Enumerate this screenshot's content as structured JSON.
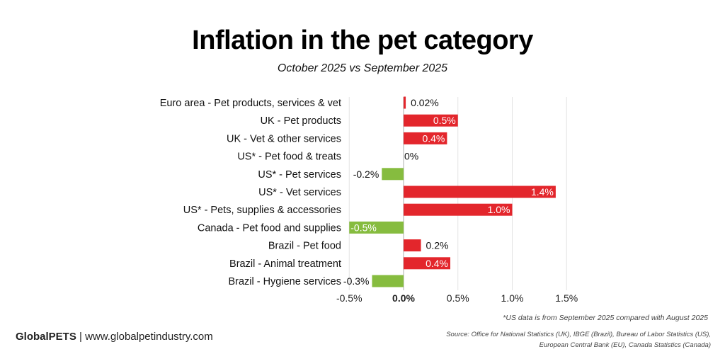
{
  "chart_data": {
    "type": "bar",
    "orientation": "horizontal",
    "title": "Inflation in the pet category",
    "subtitle": "October 2025 vs September 2025",
    "xlabel": "",
    "ylabel": "",
    "xlim": [
      -0.5,
      1.5
    ],
    "x_ticks": [
      -0.5,
      0.0,
      0.5,
      1.0,
      1.5
    ],
    "x_tick_labels": [
      "-0.5%",
      "0.0%",
      "0.5%",
      "1.0%",
      "1.5%"
    ],
    "grid": true,
    "legend": "none",
    "categories": [
      "Euro area - Pet products, services & vet",
      "UK - Pet products",
      "UK - Vet & other services",
      "US* - Pet food & treats",
      "US* - Pet services",
      "US* - Vet services",
      "US* - Pets, supplies & accessories",
      "Canada - Pet food and supplies",
      "Brazil - Pet food",
      "Brazil - Animal treatment",
      "Brazil - Hygiene services"
    ],
    "values": [
      0.02,
      0.5,
      0.4,
      0.0,
      -0.2,
      1.4,
      1.0,
      -0.5,
      0.16,
      0.43,
      -0.29
    ],
    "data_labels": [
      "0.02%",
      "0.5%",
      "0.4%",
      "0%",
      "-0.2%",
      "1.4%",
      "1.0%",
      "-0.5%",
      "0.2%",
      "0.4%",
      "-0.3%"
    ],
    "colors": {
      "positive": "#e3262c",
      "negative": "#86bc3f",
      "grid": "#e3e3e3",
      "axis": "#c8c8c8"
    }
  },
  "header": {
    "title": "Inflation in the pet category",
    "subtitle": "October 2025 vs September 2025"
  },
  "footer": {
    "footnote": "*US data is from September 2025 compared with August 2025",
    "source_line1": "Source: Office for National Statistics (UK), IBGE (Brazil), Bureau of Labor Statistics (US),",
    "source_line2": "European Central Bank (EU), Canada Statistics (Canada)",
    "brand_name": "GlobalPETS",
    "brand_separator": " | ",
    "brand_url": "www.globalpetindustry.com"
  }
}
